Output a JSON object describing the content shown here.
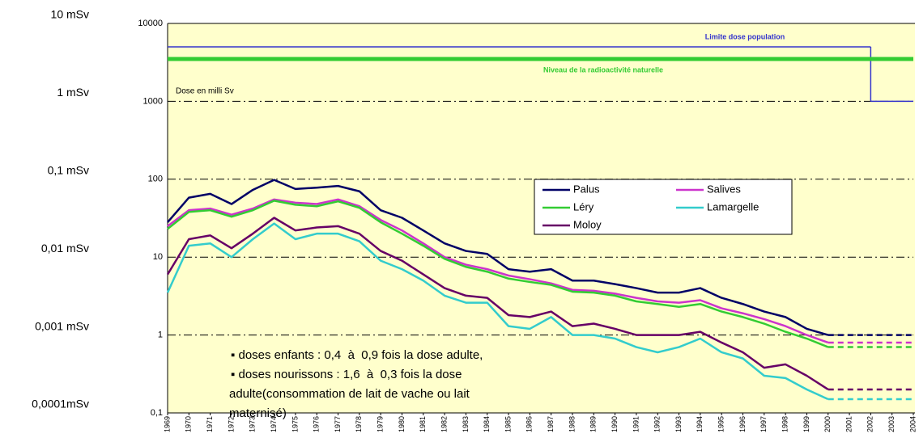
{
  "chart_data": {
    "type": "line",
    "y_label_note": "Dose en milli Sv",
    "left_labels": [
      "10 mSv",
      "1 mSv",
      "0,1 mSv",
      "0,01 mSv",
      "0,001 mSv",
      "0,0001mSv"
    ],
    "categories": [
      "1969",
      "1970",
      "1971",
      "1972",
      "1973",
      "1974",
      "1975",
      "1976",
      "1977",
      "1978",
      "1979",
      "1980",
      "1981",
      "1982",
      "1983",
      "1984",
      "1985",
      "1986",
      "1987",
      "1988",
      "1989",
      "1990",
      "1991",
      "1992",
      "1993",
      "1994",
      "1995",
      "1996",
      "1997",
      "1998",
      "1999",
      "2000",
      "2001",
      "2002",
      "2003",
      "2004"
    ],
    "log_scale": true,
    "ylim": [
      0.1,
      10000
    ],
    "yticks": [
      {
        "value": 0.1,
        "label": "0,1"
      },
      1,
      10,
      100,
      1000,
      10000
    ],
    "grid": true,
    "projection": "dashed",
    "series": [
      {
        "name": "Palus",
        "color": "#000066",
        "values": [
          28,
          58,
          65,
          48,
          73,
          98,
          75,
          78,
          82,
          70,
          40,
          32,
          22,
          15,
          12,
          11,
          7,
          6.5,
          7,
          5,
          5,
          4.5,
          4,
          3.5,
          3.5,
          4,
          3,
          2.5,
          2,
          1.7,
          1.2,
          1.0,
          null,
          null,
          null,
          null
        ]
      },
      {
        "name": "Salives",
        "color": "#cc33cc",
        "values": [
          25,
          40,
          42,
          35,
          42,
          55,
          50,
          48,
          55,
          45,
          30,
          22,
          15,
          10,
          8,
          7,
          5.8,
          5.2,
          4.6,
          3.8,
          3.7,
          3.4,
          3.0,
          2.7,
          2.6,
          2.8,
          2.2,
          1.9,
          1.6,
          1.3,
          1.0,
          0.8,
          null,
          null,
          null,
          null
        ]
      },
      {
        "name": "Léry",
        "color": "#33cc33",
        "values": [
          23,
          38,
          40,
          33,
          40,
          53,
          47,
          45,
          52,
          43,
          28,
          20,
          14,
          9.5,
          7.5,
          6.5,
          5.3,
          4.8,
          4.4,
          3.6,
          3.5,
          3.2,
          2.7,
          2.5,
          2.3,
          2.5,
          2.0,
          1.7,
          1.4,
          1.1,
          0.9,
          0.7,
          null,
          null,
          null,
          null
        ]
      },
      {
        "name": "Lamargelle",
        "color": "#33cccc",
        "values": [
          3.5,
          14,
          15,
          10,
          17,
          27,
          17,
          20,
          20,
          16,
          9,
          7,
          5,
          3.2,
          2.6,
          2.6,
          1.3,
          1.2,
          1.7,
          1.0,
          1.0,
          0.9,
          0.7,
          0.6,
          0.7,
          0.9,
          0.6,
          0.5,
          0.3,
          0.28,
          0.2,
          0.15,
          null,
          null,
          null,
          null
        ]
      },
      {
        "name": "Moloy",
        "color": "#660066",
        "values": [
          6,
          17,
          19,
          13,
          20,
          32,
          22,
          24,
          25,
          20,
          12,
          9,
          6,
          4,
          3.2,
          3,
          1.8,
          1.7,
          2.0,
          1.3,
          1.4,
          1.2,
          1.0,
          1.0,
          1.0,
          1.1,
          0.8,
          0.6,
          0.38,
          0.42,
          0.3,
          0.2,
          null,
          null,
          null,
          null
        ]
      }
    ],
    "reference_lines": [
      {
        "label": "Limite dose population",
        "color": "#3333cc",
        "steps": [
          {
            "from": "1969",
            "to": "2002",
            "value": 5000
          },
          {
            "from": "2002",
            "to": "2004",
            "value": 1000
          }
        ]
      },
      {
        "label": "Niveau de la radioactivité naturelle",
        "color": "#33cc33",
        "steps": [
          {
            "from": "1969",
            "to": "2004",
            "value": 3500
          }
        ]
      }
    ],
    "annotation": [
      "▪ doses enfants : 0,4  à  0,9 fois la dose adulte,",
      "▪ doses nourissons : 1,6  à  0,3 fois la dose",
      "adulte(consommation de lait de vache ou lait",
      "maternisé)"
    ]
  }
}
